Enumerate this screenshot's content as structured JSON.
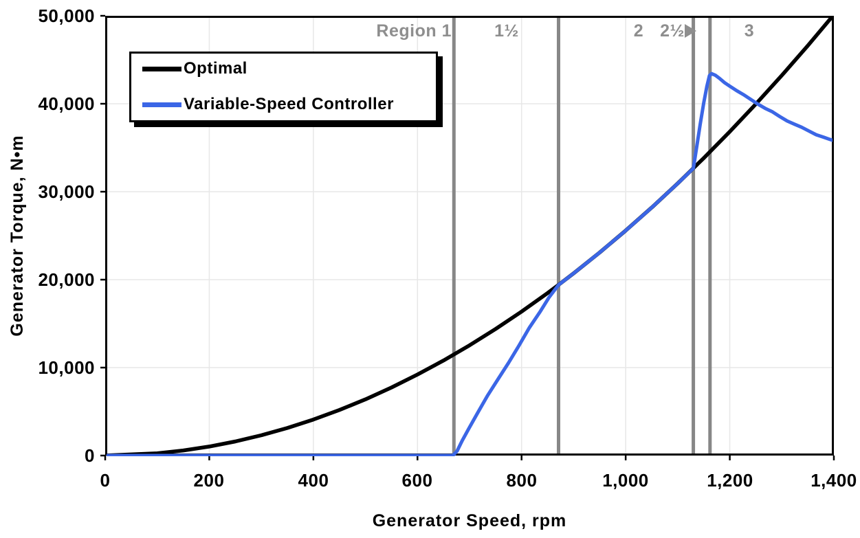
{
  "figure": {
    "background": "#ffffff"
  },
  "y_axis": {
    "title": "Generator Torque, N•m",
    "tick_labels": [
      "50,000",
      "40,000",
      "30,000",
      "20,000",
      "10,000",
      "0"
    ]
  },
  "x_axis": {
    "title": "Generator Speed, rpm",
    "tick_labels": [
      "0",
      "200",
      "400",
      "600",
      "800",
      "1,000",
      "1,200",
      "1,400"
    ]
  },
  "legend": {
    "items": [
      {
        "label": "Optimal",
        "color": "#000000"
      },
      {
        "label": "Variable-Speed Controller",
        "color": "#3B66E6"
      }
    ]
  },
  "regions": {
    "labels": [
      "Region 1",
      "1½",
      "2",
      "2½",
      "3"
    ],
    "arrow_icon": "right-triangle",
    "label_color": "#8e8e8e"
  },
  "chart_data": {
    "type": "line",
    "title": "",
    "xlabel": "Generator Speed, rpm",
    "ylabel": "Generator Torque, N•m",
    "xlim": [
      0,
      1400
    ],
    "ylim": [
      0,
      50000
    ],
    "x_ticks": [
      0,
      200,
      400,
      600,
      800,
      1000,
      1200,
      1400
    ],
    "y_ticks": [
      0,
      10000,
      20000,
      30000,
      40000,
      50000
    ],
    "grid": true,
    "grid_color": "#E7E7E7",
    "region_boundaries_rpm": [
      670,
      871,
      1130,
      1162
    ],
    "region_line_color": "#878787",
    "legend_position": "upper-left",
    "series": [
      {
        "name": "Optimal",
        "color": "#000000",
        "width": 5.5,
        "points": [
          [
            0,
            0
          ],
          [
            100,
            256
          ],
          [
            150,
            575
          ],
          [
            200,
            1023
          ],
          [
            250,
            1599
          ],
          [
            300,
            2302
          ],
          [
            350,
            3133
          ],
          [
            400,
            4092
          ],
          [
            450,
            5179
          ],
          [
            500,
            6394
          ],
          [
            550,
            7737
          ],
          [
            600,
            9208
          ],
          [
            650,
            10806
          ],
          [
            700,
            12532
          ],
          [
            750,
            14387
          ],
          [
            800,
            16369
          ],
          [
            850,
            18479
          ],
          [
            871,
            19403
          ],
          [
            900,
            20717
          ],
          [
            950,
            23083
          ],
          [
            1000,
            25576
          ],
          [
            1050,
            28198
          ],
          [
            1100,
            30947
          ],
          [
            1150,
            33824
          ],
          [
            1200,
            36830
          ],
          [
            1250,
            39963
          ],
          [
            1300,
            43224
          ],
          [
            1350,
            46613
          ],
          [
            1400,
            50130
          ]
        ]
      },
      {
        "name": "Variable-Speed Controller",
        "color": "#3B66E6",
        "width": 5,
        "points": [
          [
            0,
            0
          ],
          [
            200,
            0
          ],
          [
            400,
            0
          ],
          [
            600,
            0
          ],
          [
            668,
            0
          ],
          [
            676,
            500
          ],
          [
            686,
            1700
          ],
          [
            698,
            3000
          ],
          [
            715,
            4800
          ],
          [
            735,
            6850
          ],
          [
            755,
            8700
          ],
          [
            775,
            10550
          ],
          [
            795,
            12500
          ],
          [
            815,
            14550
          ],
          [
            835,
            16300
          ],
          [
            853,
            18000
          ],
          [
            871,
            19403
          ],
          [
            900,
            20717
          ],
          [
            950,
            23083
          ],
          [
            1000,
            25576
          ],
          [
            1050,
            28198
          ],
          [
            1100,
            30947
          ],
          [
            1130,
            32657
          ],
          [
            1136,
            34900
          ],
          [
            1143,
            37600
          ],
          [
            1150,
            40100
          ],
          [
            1156,
            42000
          ],
          [
            1161,
            43200
          ],
          [
            1165,
            43420
          ],
          [
            1172,
            43250
          ],
          [
            1180,
            42900
          ],
          [
            1190,
            42400
          ],
          [
            1200,
            42000
          ],
          [
            1213,
            41500
          ],
          [
            1226,
            41050
          ],
          [
            1240,
            40500
          ],
          [
            1254,
            39950
          ],
          [
            1268,
            39480
          ],
          [
            1282,
            39080
          ],
          [
            1296,
            38550
          ],
          [
            1310,
            38050
          ],
          [
            1324,
            37680
          ],
          [
            1338,
            37330
          ],
          [
            1352,
            36900
          ],
          [
            1366,
            36480
          ],
          [
            1380,
            36200
          ],
          [
            1392,
            35950
          ],
          [
            1400,
            35800
          ]
        ]
      }
    ]
  }
}
